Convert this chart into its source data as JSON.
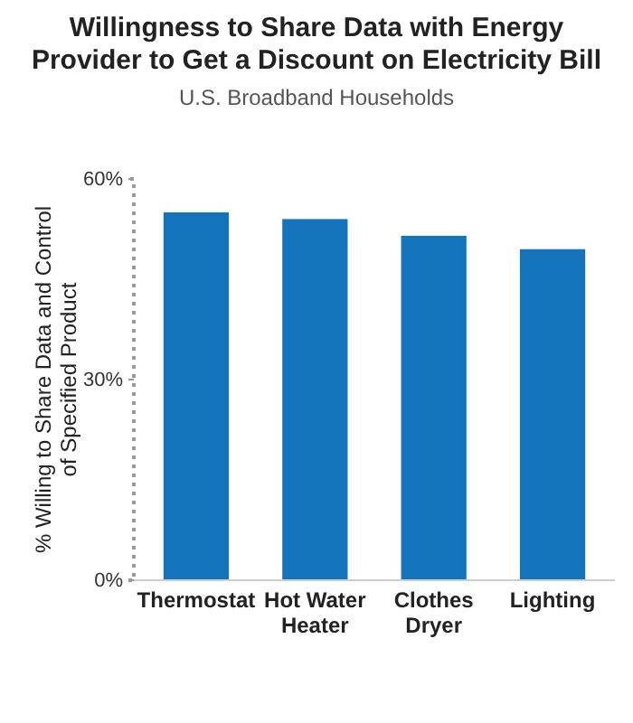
{
  "chart_data": {
    "type": "bar",
    "title": "Willingness to Share Data with Energy Provider to Get a Discount on Electricity Bill",
    "subtitle": "U.S. Broadband Households",
    "ylabel": "% Willing to Share Data and Control of Specified Product",
    "categories": [
      "Thermostat",
      "Hot Water Heater",
      "Clothes Dryer",
      "Lighting"
    ],
    "values": [
      55,
      54,
      51.5,
      49.5
    ],
    "color": "#1474bb",
    "ylim": [
      0,
      60
    ],
    "yticks": [
      {
        "value": 0,
        "label": "0%"
      },
      {
        "value": 30,
        "label": "30%"
      },
      {
        "value": 60,
        "label": "60%"
      }
    ],
    "grid": false
  }
}
